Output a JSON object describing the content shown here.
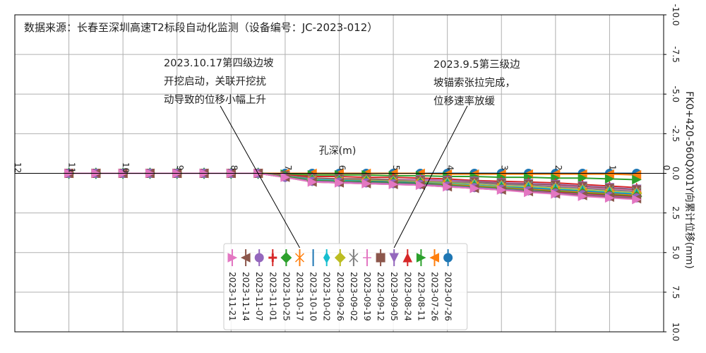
{
  "chart_data": {
    "type": "line",
    "title": "",
    "source_note": "数据来源：长春至深圳高速T2标段自动化监测（设备编号：JC-2023-012）",
    "xlabel": "孔深(m)",
    "ylabel": "FK0+420-560QX01Y向累计位移(mm)",
    "xlim": [
      12,
      0
    ],
    "ylim": [
      10,
      -10
    ],
    "x_ticks": [
      12,
      11,
      10,
      9,
      8,
      7,
      6,
      5,
      4,
      3,
      2,
      1,
      0
    ],
    "y_ticks": [
      -10.0,
      -7.5,
      -5.0,
      -2.5,
      0.0,
      2.5,
      5.0,
      7.5,
      10.0
    ],
    "grid": true,
    "legend_position": "lower-center",
    "x": [
      11,
      10.5,
      10,
      9.5,
      9,
      8.5,
      8,
      7.5,
      7,
      6.5,
      6,
      5.5,
      5,
      4.5,
      4,
      3.5,
      3,
      2.5,
      2,
      1.5,
      1,
      0.5
    ],
    "series": [
      {
        "name": "2023-07-26",
        "color": "#1f77b4",
        "marker": "circle",
        "values": [
          0,
          0,
          0,
          0,
          0,
          0,
          0,
          0,
          0,
          0,
          0,
          0,
          0,
          0,
          0,
          0,
          0,
          0,
          0,
          0,
          0,
          0
        ]
      },
      {
        "name": "2023-07-26",
        "color": "#ff7f0e",
        "marker": "tri-left",
        "values": [
          0,
          0,
          0,
          0,
          0,
          0,
          0,
          0,
          0,
          0,
          0,
          0,
          0,
          0,
          0.05,
          0.05,
          0.05,
          0.05,
          0.05,
          0.05,
          0.05,
          0.1
        ]
      },
      {
        "name": "2023-08-11",
        "color": "#2ca02c",
        "marker": "tri-right",
        "values": [
          0,
          0,
          0,
          0,
          0,
          0,
          0,
          0,
          0.05,
          0.1,
          0.1,
          0.1,
          0.15,
          0.15,
          0.2,
          0.2,
          0.25,
          0.25,
          0.3,
          0.3,
          0.35,
          0.4
        ]
      },
      {
        "name": "2023-08-24",
        "color": "#d62728",
        "marker": "tri-up",
        "values": [
          0,
          0,
          0,
          0,
          0,
          0,
          0,
          0,
          0.1,
          0.2,
          0.2,
          0.25,
          0.25,
          0.3,
          0.35,
          0.45,
          0.5,
          0.55,
          0.6,
          0.7,
          0.8,
          0.9
        ]
      },
      {
        "name": "2023-09-05",
        "color": "#9467bd",
        "marker": "tri-down",
        "values": [
          0,
          0,
          0,
          0,
          0,
          0,
          0,
          0,
          0.15,
          0.3,
          0.35,
          0.35,
          0.4,
          0.4,
          0.45,
          0.5,
          0.6,
          0.65,
          0.7,
          0.8,
          0.9,
          1.0
        ]
      },
      {
        "name": "2023-09-12",
        "color": "#8c564b",
        "marker": "square",
        "values": [
          0,
          0,
          0,
          0,
          0,
          0,
          0,
          0,
          0.15,
          0.3,
          0.35,
          0.35,
          0.4,
          0.45,
          0.5,
          0.55,
          0.65,
          0.7,
          0.75,
          0.85,
          0.95,
          1.05
        ]
      },
      {
        "name": "2023-09-19",
        "color": "#e377c2",
        "marker": "plus",
        "values": [
          0,
          0,
          0,
          0,
          0,
          0,
          0,
          0,
          0.15,
          0.35,
          0.4,
          0.4,
          0.45,
          0.45,
          0.5,
          0.6,
          0.7,
          0.75,
          0.8,
          0.9,
          1.0,
          1.1
        ]
      },
      {
        "name": "2023-09-02",
        "color": "#7f7f7f",
        "marker": "x",
        "values": [
          0,
          0,
          0,
          0,
          0,
          0,
          0,
          0,
          0.15,
          0.35,
          0.4,
          0.4,
          0.45,
          0.5,
          0.55,
          0.6,
          0.7,
          0.75,
          0.85,
          0.95,
          1.05,
          1.15
        ]
      },
      {
        "name": "2023-09-26",
        "color": "#bcbd22",
        "marker": "diamond",
        "values": [
          0,
          0,
          0,
          0,
          0,
          0,
          0,
          0,
          0.2,
          0.4,
          0.45,
          0.45,
          0.5,
          0.55,
          0.6,
          0.7,
          0.8,
          0.85,
          0.95,
          1.05,
          1.15,
          1.25
        ]
      },
      {
        "name": "2023-10-02",
        "color": "#17becf",
        "marker": "thin-diamond",
        "values": [
          0,
          0,
          0,
          0,
          0,
          0,
          0,
          0,
          0.2,
          0.4,
          0.45,
          0.5,
          0.55,
          0.6,
          0.65,
          0.75,
          0.85,
          0.9,
          1.0,
          1.1,
          1.2,
          1.3
        ]
      },
      {
        "name": "2023-10-10",
        "color": "#1f77b4",
        "marker": "vline",
        "values": [
          0,
          0,
          0,
          0,
          0,
          0,
          0,
          0,
          0.2,
          0.45,
          0.5,
          0.5,
          0.55,
          0.6,
          0.7,
          0.8,
          0.9,
          0.95,
          1.05,
          1.15,
          1.25,
          1.35
        ]
      },
      {
        "name": "2023-10-17",
        "color": "#ff7f0e",
        "marker": "x",
        "values": [
          0,
          0,
          0,
          0,
          0,
          0,
          0,
          0,
          0.2,
          0.45,
          0.5,
          0.55,
          0.6,
          0.65,
          0.7,
          0.8,
          0.9,
          1.0,
          1.1,
          1.2,
          1.3,
          1.4
        ]
      },
      {
        "name": "2023-10-25",
        "color": "#2ca02c",
        "marker": "diamond",
        "values": [
          0,
          0,
          0,
          0,
          0,
          0,
          0,
          0,
          0.2,
          0.45,
          0.5,
          0.55,
          0.6,
          0.65,
          0.75,
          0.85,
          0.95,
          1.05,
          1.15,
          1.25,
          1.35,
          1.45
        ]
      },
      {
        "name": "2023-11-01",
        "color": "#d62728",
        "marker": "plus-thick",
        "values": [
          0,
          0,
          0,
          0,
          0,
          0,
          0,
          0,
          0.25,
          0.5,
          0.55,
          0.6,
          0.65,
          0.7,
          0.8,
          0.9,
          1.0,
          1.1,
          1.2,
          1.3,
          1.4,
          1.5
        ]
      },
      {
        "name": "2023-11-07",
        "color": "#9467bd",
        "marker": "circle",
        "values": [
          0,
          0,
          0,
          0,
          0,
          0,
          0,
          0,
          0.25,
          0.5,
          0.55,
          0.6,
          0.65,
          0.7,
          0.8,
          0.9,
          1.0,
          1.1,
          1.25,
          1.35,
          1.45,
          1.55
        ]
      },
      {
        "name": "2023-11-14",
        "color": "#8c564b",
        "marker": "tri-left",
        "values": [
          0,
          0,
          0,
          0,
          0,
          0,
          0,
          0,
          0.25,
          0.55,
          0.6,
          0.65,
          0.7,
          0.75,
          0.85,
          0.95,
          1.05,
          1.15,
          1.3,
          1.4,
          1.5,
          1.6
        ]
      },
      {
        "name": "2023-11-21",
        "color": "#e377c2",
        "marker": "tri-right",
        "values": [
          0,
          0,
          0,
          0,
          0,
          0,
          0,
          0,
          0.25,
          0.55,
          0.6,
          0.65,
          0.7,
          0.75,
          0.85,
          0.95,
          1.05,
          1.2,
          1.3,
          1.45,
          1.55,
          1.65
        ]
      }
    ],
    "annotations": [
      {
        "lines": [
          "2023.10.17第四级边坡",
          "开挖启动，关联开挖扰",
          "动导致的位移小幅上升"
        ],
        "arrow_to": {
          "x": 7.5,
          "y": 0.1
        },
        "arrow_tip": "legend-2023-10-17"
      },
      {
        "lines": [
          "2023.9.5第三级边",
          "坡锚索张拉完成，",
          "位移速率放缓"
        ],
        "arrow_to": {
          "x": 4.5,
          "y": 0.4
        },
        "arrow_tip": "legend-2023-09-05"
      }
    ]
  }
}
